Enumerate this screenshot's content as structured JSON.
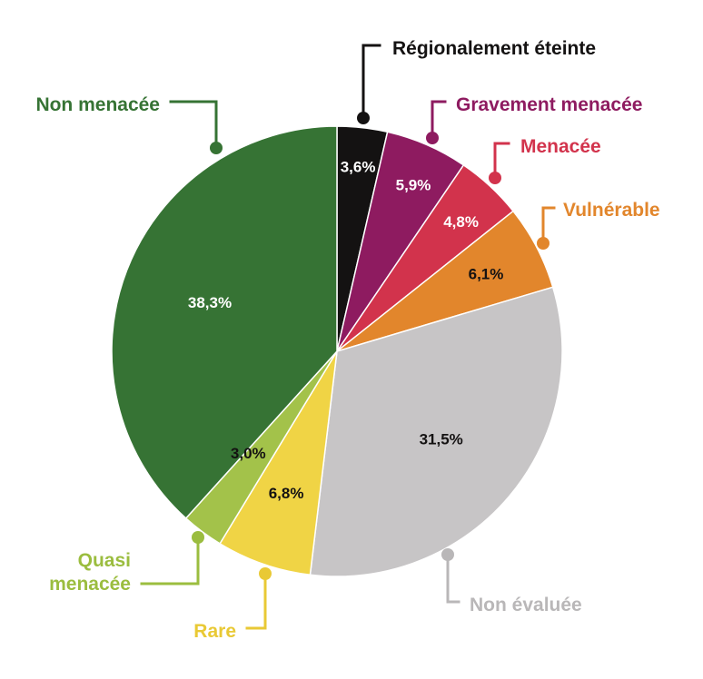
{
  "chart_data": {
    "type": "pie",
    "title": "",
    "unit": "%",
    "slices": [
      {
        "category": "Régionalement éteinte",
        "value": 3.6,
        "value_label": "3,6%",
        "color": "#141212",
        "label_color": "#141212",
        "pct_color": "#ffffff"
      },
      {
        "category": "Gravement menacée",
        "value": 5.9,
        "value_label": "5,9%",
        "color": "#8e1b60",
        "label_color": "#8e1b60",
        "pct_color": "#ffffff"
      },
      {
        "category": "Menacée",
        "value": 4.8,
        "value_label": "4,8%",
        "color": "#d2334c",
        "label_color": "#d2334c",
        "pct_color": "#ffffff"
      },
      {
        "category": "Vulnérable",
        "value": 6.1,
        "value_label": "6,1%",
        "color": "#e2862c",
        "label_color": "#e2862c",
        "pct_color": "#141212"
      },
      {
        "category": "Non évaluée",
        "value": 31.5,
        "value_label": "31,5%",
        "color": "#c7c5c6",
        "label_color": "#b9b7b8",
        "pct_color": "#141212"
      },
      {
        "category": "Rare",
        "value": 6.8,
        "value_label": "6,8%",
        "color": "#f0d445",
        "label_color": "#e9c935",
        "pct_color": "#141212"
      },
      {
        "category": "Quasi menacée",
        "value": 3.0,
        "value_label": "3,0%",
        "color": "#a3c24a",
        "label_color": "#9bbd3f",
        "pct_color": "#141212",
        "label_lines": [
          "Quasi",
          "menacée"
        ]
      },
      {
        "category": "Non menacée",
        "value": 38.3,
        "value_label": "38,3%",
        "color": "#367334",
        "label_color": "#367334",
        "pct_color": "#ffffff"
      }
    ],
    "start_angle_deg": 0,
    "direction": "clockwise",
    "legend": "callouts"
  }
}
